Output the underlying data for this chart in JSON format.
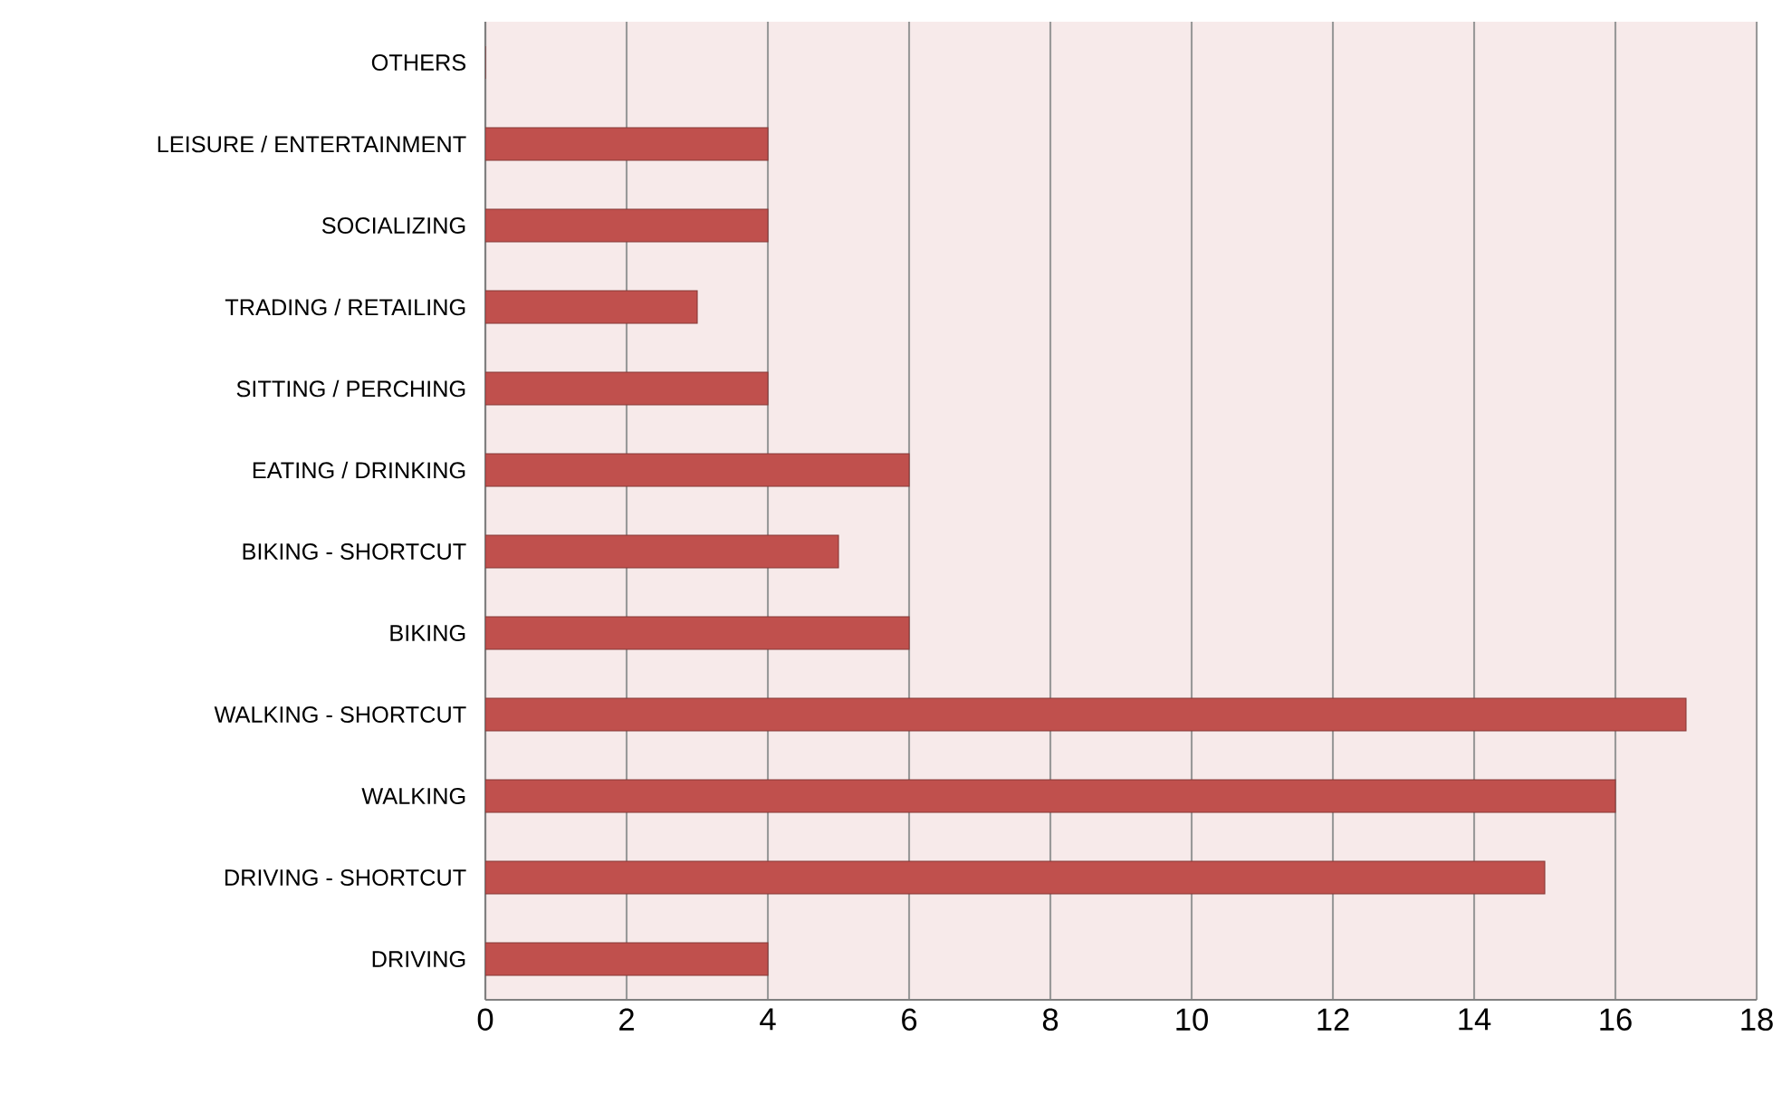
{
  "chart_data": {
    "type": "bar",
    "orientation": "horizontal",
    "categories": [
      "OTHERS",
      "LEISURE / ENTERTAINMENT",
      "SOCIALIZING",
      "TRADING / RETAILING",
      "SITTING / PERCHING",
      "EATING / DRINKING",
      "BIKING - SHORTCUT",
      "BIKING",
      "WALKING - SHORTCUT",
      "WALKING",
      "DRIVING - SHORTCUT",
      "DRIVING"
    ],
    "values": [
      0,
      4,
      4,
      3,
      4,
      6,
      5,
      6,
      17,
      16,
      15,
      4
    ],
    "color": "#c0504d",
    "xlim": [
      0,
      18
    ],
    "xticks": [
      0,
      2,
      4,
      6,
      8,
      10,
      12,
      14,
      16,
      18
    ],
    "grid": "x"
  }
}
